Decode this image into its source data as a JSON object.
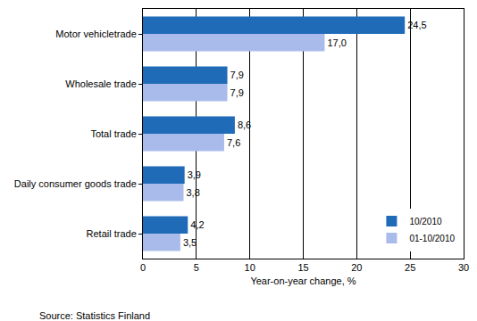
{
  "chart_data": {
    "type": "bar",
    "orientation": "horizontal",
    "categories": [
      "Motor vehicletrade",
      "Wholesale trade",
      "Total trade",
      "Daily consumer goods trade",
      "Retail trade"
    ],
    "series": [
      {
        "name": "10/2010",
        "color": "#1f6bb8",
        "values": [
          24.5,
          7.9,
          8.6,
          3.9,
          4.2
        ],
        "value_labels": [
          "24,5",
          "7,9",
          "8,6",
          "3,9",
          "4,2"
        ]
      },
      {
        "name": "01-10/2010",
        "color": "#a9bbea",
        "values": [
          17.0,
          7.9,
          7.6,
          3.8,
          3.5
        ],
        "value_labels": [
          "17,0",
          "7,9",
          "7,6",
          "3,8",
          "3,5"
        ]
      }
    ],
    "x_label": "Year-on-year change, %",
    "xlim": [
      0,
      30
    ],
    "xticks": [
      0,
      5,
      10,
      15,
      20,
      25,
      30
    ],
    "grid": true,
    "legend": "lower right",
    "data_labels": true,
    "source": "Source: Statistics Finland"
  }
}
